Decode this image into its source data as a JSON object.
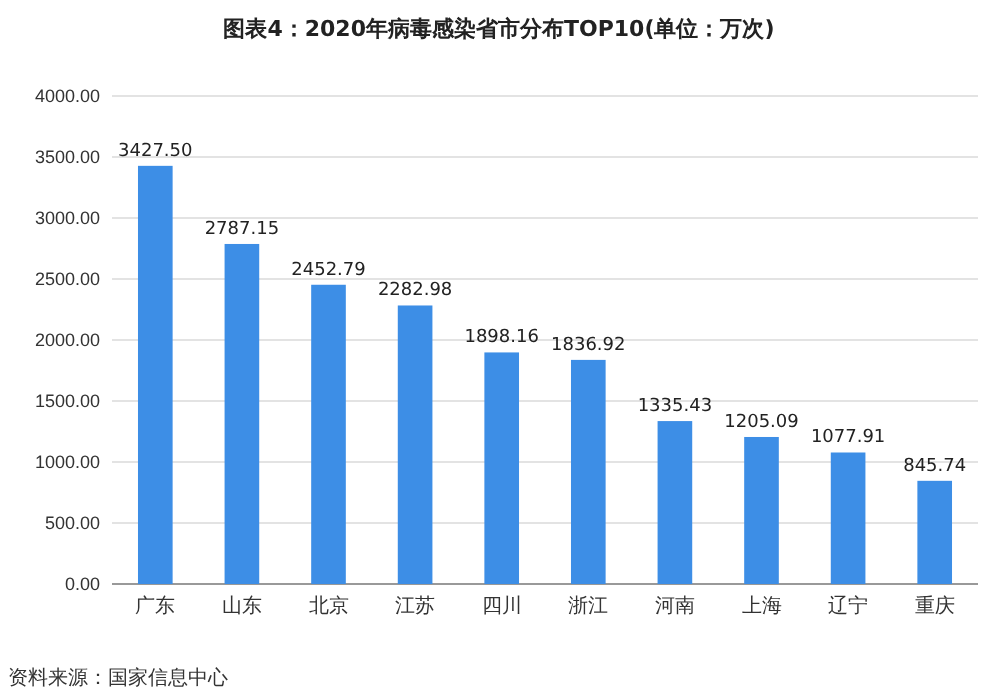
{
  "chart_data": {
    "type": "bar",
    "title": "图表4：2020年病毒感染省市分布TOP10(单位：万次)",
    "categories": [
      "广东",
      "山东",
      "北京",
      "江苏",
      "四川",
      "浙江",
      "河南",
      "上海",
      "辽宁",
      "重庆"
    ],
    "values": [
      3427.5,
      2787.15,
      2452.79,
      2282.98,
      1898.16,
      1836.92,
      1335.43,
      1205.09,
      1077.91,
      845.74
    ],
    "color": "#3d8ee6",
    "ylim": [
      0,
      4000
    ],
    "yticks": [
      {
        "value": 0,
        "label": "0.00"
      },
      {
        "value": 500,
        "label": "500.00"
      },
      {
        "value": 1000,
        "label": "1000.00"
      },
      {
        "value": 1500,
        "label": "1500.00"
      },
      {
        "value": 2000,
        "label": "2000.00"
      },
      {
        "value": 2500,
        "label": "2500.00"
      },
      {
        "value": 3000,
        "label": "3000.00"
      },
      {
        "value": 3500,
        "label": "3500.00"
      },
      {
        "value": 4000,
        "label": "4000.00"
      }
    ],
    "value_labels": [
      "3427.50",
      "2787.15",
      "2452.79",
      "2282.98",
      "1898.16",
      "1836.92",
      "1335.43",
      "1205.09",
      "1077.91",
      "845.74"
    ],
    "grid": "y",
    "annotations": [
      "资料来源：国家信息中心"
    ]
  }
}
